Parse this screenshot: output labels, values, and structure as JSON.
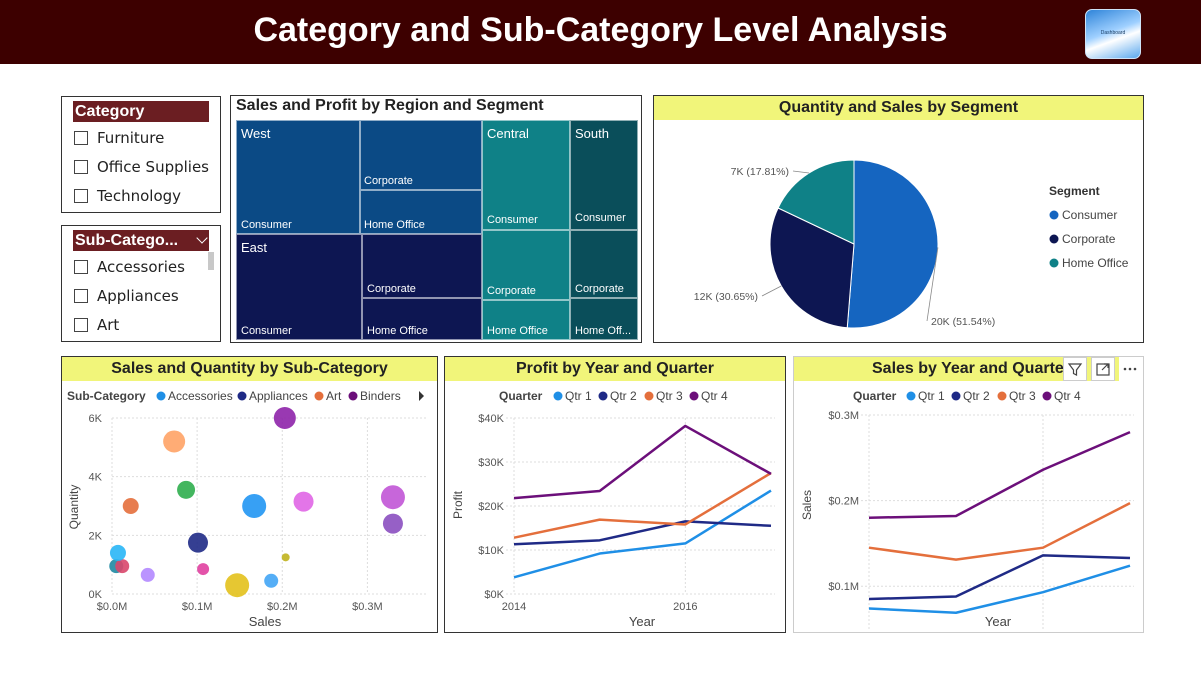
{
  "header": {
    "title": "Category and Sub-Category Level Analysis",
    "logo_text": "Dashboard"
  },
  "slicers": {
    "category": {
      "title": "Category",
      "items": [
        "Furniture",
        "Office Supplies",
        "Technology"
      ]
    },
    "subcategory": {
      "title": "Sub-Catego...",
      "items": [
        "Accessories",
        "Appliances",
        "Art"
      ]
    }
  },
  "treemap": {
    "title": "Sales and Profit by Region and Segment",
    "labels": {
      "west": "West",
      "west_consumer": "Consumer",
      "west_corporate": "Corporate",
      "west_home": "Home Office",
      "east": "East",
      "east_consumer": "Consumer",
      "east_corporate": "Corporate",
      "east_home": "Home Office",
      "central": "Central",
      "central_consumer": "Consumer",
      "central_corporate": "Corporate",
      "central_home": "Home Office",
      "south": "South",
      "south_consumer": "Consumer",
      "south_corporate": "Corporate",
      "south_home": "Home Off..."
    }
  },
  "pie": {
    "title": "Quantity and Sales by Segment",
    "legend_title": "Segment",
    "legend": [
      "Consumer",
      "Corporate",
      "Home Office"
    ],
    "labels": [
      "20K (51.54%)",
      "12K (30.65%)",
      "7K (17.81%)"
    ]
  },
  "scatter": {
    "title": "Sales and Quantity by Sub-Category",
    "legend_title": "Sub-Category",
    "legend": [
      "Accessories",
      "Appliances",
      "Art",
      "Binders"
    ],
    "xlabel": "Sales",
    "ylabel": "Quantity",
    "xticks": [
      "$0.0M",
      "$0.1M",
      "$0.2M",
      "$0.3M"
    ],
    "yticks": [
      "0K",
      "2K",
      "4K",
      "6K"
    ]
  },
  "profit_line": {
    "title": "Profit by Year and Quarter",
    "legend_title": "Quarter",
    "legend": [
      "Qtr 1",
      "Qtr 2",
      "Qtr 3",
      "Qtr 4"
    ],
    "xlabel": "Year",
    "ylabel": "Profit",
    "xticks": [
      "2014",
      "2016"
    ],
    "yticks": [
      "$0K",
      "$10K",
      "$20K",
      "$30K",
      "$40K"
    ]
  },
  "sales_line": {
    "title": "Sales by Year and Quarter",
    "legend_title": "Quarter",
    "legend": [
      "Qtr 1",
      "Qtr 2",
      "Qtr 3",
      "Qtr 4"
    ],
    "xlabel": "Year",
    "ylabel": "Sales",
    "xticks": [
      "2014",
      "2016"
    ],
    "yticks": [
      "$0.1M",
      "$0.2M",
      "$0.3M"
    ]
  },
  "colors": {
    "header_bg": "#3d0000",
    "slicer_header": "#6b1e22",
    "title_yellow": "#f1f57a",
    "qtr1": "#1f8fe6",
    "qtr2": "#1f2a86",
    "qtr3": "#e46f3c",
    "qtr4": "#6c0f7a",
    "consumer": "#1565c0",
    "corporate": "#0d1652",
    "home_office": "#0f8187"
  },
  "chart_data": [
    {
      "type": "heatmap",
      "title": "Sales and Profit by Region and Segment",
      "regions": [
        "West",
        "East",
        "Central",
        "South"
      ],
      "segments": [
        "Consumer",
        "Corporate",
        "Home Office"
      ]
    },
    {
      "type": "pie",
      "title": "Quantity and Sales by Segment",
      "categories": [
        "Consumer",
        "Corporate",
        "Home Office"
      ],
      "values": [
        20000,
        12000,
        7000
      ],
      "percent": [
        51.54,
        30.65,
        17.81
      ],
      "legend": "right"
    },
    {
      "type": "scatter",
      "title": "Sales and Quantity by Sub-Category",
      "xlabel": "Sales",
      "ylabel": "Quantity",
      "xlim": [
        0,
        0.37
      ],
      "ylim": [
        0,
        6000
      ],
      "points": [
        {
          "x": 0.005,
          "y": 950,
          "r": 7,
          "color": "#1f8aa3"
        },
        {
          "x": 0.012,
          "y": 950,
          "r": 7,
          "color": "#d9476b"
        },
        {
          "x": 0.007,
          "y": 1400,
          "r": 8,
          "color": "#29b6f6"
        },
        {
          "x": 0.022,
          "y": 3000,
          "r": 8,
          "color": "#e46f3c"
        },
        {
          "x": 0.042,
          "y": 650,
          "r": 7,
          "color": "#b388ff"
        },
        {
          "x": 0.073,
          "y": 5200,
          "r": 11,
          "color": "#ffa366"
        },
        {
          "x": 0.087,
          "y": 3550,
          "r": 9,
          "color": "#2fae4e"
        },
        {
          "x": 0.101,
          "y": 1750,
          "r": 10,
          "color": "#1f2a86"
        },
        {
          "x": 0.107,
          "y": 850,
          "r": 6,
          "color": "#e040a0"
        },
        {
          "x": 0.147,
          "y": 300,
          "r": 12,
          "color": "#e3c11c"
        },
        {
          "x": 0.167,
          "y": 3000,
          "r": 12,
          "color": "#2196f3"
        },
        {
          "x": 0.187,
          "y": 450,
          "r": 7,
          "color": "#42a5f5"
        },
        {
          "x": 0.203,
          "y": 6000,
          "r": 11,
          "color": "#8e24aa"
        },
        {
          "x": 0.204,
          "y": 1250,
          "r": 4,
          "color": "#c0b21d"
        },
        {
          "x": 0.225,
          "y": 3150,
          "r": 10,
          "color": "#e066e6"
        },
        {
          "x": 0.33,
          "y": 3300,
          "r": 12,
          "color": "#c155d6"
        },
        {
          "x": 0.33,
          "y": 2400,
          "r": 10,
          "color": "#8b4fc0"
        }
      ]
    },
    {
      "type": "line",
      "title": "Profit by Year and Quarter",
      "x": [
        2014,
        2015,
        2016,
        2017
      ],
      "ylim": [
        0,
        40000
      ],
      "series": [
        {
          "name": "Qtr 1",
          "values": [
            3800,
            9200,
            11500,
            23500
          ]
        },
        {
          "name": "Qtr 2",
          "values": [
            11300,
            12200,
            16500,
            15500
          ]
        },
        {
          "name": "Qtr 3",
          "values": [
            12800,
            16900,
            15800,
            27500
          ]
        },
        {
          "name": "Qtr 4",
          "values": [
            21800,
            23400,
            38200,
            27300
          ]
        }
      ],
      "xlabel": "Year",
      "ylabel": "Profit"
    },
    {
      "type": "line",
      "title": "Sales by Year and Quarter",
      "x": [
        2014,
        2015,
        2016,
        2017
      ],
      "ylim": [
        0.05,
        0.3
      ],
      "series": [
        {
          "name": "Qtr 1",
          "values": [
            0.074,
            0.069,
            0.093,
            0.124
          ]
        },
        {
          "name": "Qtr 2",
          "values": [
            0.085,
            0.088,
            0.136,
            0.133
          ]
        },
        {
          "name": "Qtr 3",
          "values": [
            0.145,
            0.131,
            0.145,
            0.197
          ]
        },
        {
          "name": "Qtr 4",
          "values": [
            0.18,
            0.182,
            0.236,
            0.28
          ]
        }
      ],
      "xlabel": "Year",
      "ylabel": "Sales"
    }
  ]
}
